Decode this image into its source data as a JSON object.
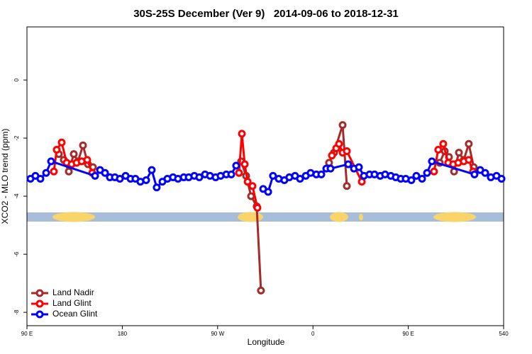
{
  "chart_data": {
    "type": "line",
    "title": "30S-25S December (Ver 9)   2014-09-06 to 2018-12-31",
    "xlabel": "Longitude",
    "ylabel": "XCO2 - MLO trend (ppm)",
    "xlim": [
      90,
      540
    ],
    "ylim": [
      -8.46,
      1.83
    ],
    "xticks": [
      {
        "value": 90,
        "label": "90 E"
      },
      180,
      {
        "value": 270,
        "label": "90 W"
      },
      {
        "value": 360,
        "label": "0"
      },
      {
        "value": 450,
        "label": "90 E"
      },
      540
    ],
    "yticks": [
      -8,
      -6,
      -4,
      -2,
      0
    ],
    "legend": "bottom-left",
    "series": [
      {
        "name": "Land Nadir",
        "color": "#a52a2a",
        "x": [
          120.1,
          124.8,
          129.5,
          134.2,
          138.2,
          142.9,
          147.6,
          152.3,
          null,
          292.2,
          296.9,
          301.6,
          306.9,
          310.9,
          null,
          375.2,
          379.9,
          388.0,
          392.0,
          null,
          479.7,
          484.4,
          488.4,
          493.2,
          497.8,
          502.4,
          507.1,
          511.8
        ],
        "values": [
          -2.55,
          -2.75,
          -3.15,
          -2.55,
          -2.8,
          -2.25,
          -2.9,
          -3.0,
          null,
          -2.8,
          -3.3,
          -4.0,
          -4.35,
          -7.25,
          null,
          -2.85,
          -2.5,
          -1.55,
          -3.65,
          null,
          -2.85,
          -2.45,
          -2.65,
          -3.15,
          -2.5,
          -2.75,
          -2.2,
          -3.0
        ]
      },
      {
        "name": "Land Glint",
        "color": "#ff0000",
        "x": [
          115.4,
          118.1,
          122.8,
          127.5,
          132.2,
          136.9,
          141.6,
          146.9,
          151.6,
          null,
          290.2,
          292.9,
          295.6,
          298.3,
          302.9,
          307.6,
          null,
          377.9,
          382.0,
          384.6,
          388.0,
          392.0,
          406.1,
          null,
          474.3,
          478.3,
          483.0,
          487.7,
          492.4,
          497.1,
          502.4,
          507.1,
          511.2
        ],
        "values": [
          -3.15,
          -2.4,
          -2.15,
          -2.85,
          -2.9,
          -2.85,
          -2.8,
          -2.75,
          -3.2,
          null,
          -3.2,
          -1.85,
          -2.9,
          -3.5,
          -3.65,
          -4.4,
          null,
          -2.6,
          -2.35,
          -2.2,
          -2.5,
          -2.45,
          -3.5,
          null,
          -3.15,
          -2.4,
          -2.2,
          -2.85,
          -2.9,
          -2.85,
          -2.8,
          -2.75,
          -3.15
        ]
      },
      {
        "name": "Ocean Glint",
        "color": "#0000ff",
        "x": [
          93.3,
          98.0,
          102.7,
          108.1,
          112.8,
          154.3,
          159.0,
          163.7,
          168.3,
          173.0,
          177.7,
          183.1,
          187.8,
          192.4,
          197.1,
          202.5,
          207.8,
          212.5,
          217.9,
          222.6,
          227.9,
          232.6,
          238.0,
          242.7,
          248.0,
          252.7,
          258.1,
          262.8,
          268.1,
          272.8,
          278.2,
          282.9,
          287.5,
          null,
          313.0,
          317.7,
          322.3,
          327.7,
          333.0,
          337.7,
          343.1,
          347.8,
          353.2,
          357.8,
          363.2,
          367.9,
          372.6,
          376.6,
          393.3,
          398.7,
          403.4,
          408.1,
          413.4,
          418.1,
          423.5,
          428.1,
          433.5,
          438.2,
          442.9,
          447.6,
          452.9,
          457.6,
          463.0,
          467.7,
          472.3,
          512.5,
          517.9,
          522.6,
          527.9,
          533.3,
          538.0
        ],
        "values": [
          -3.4,
          -3.3,
          -3.4,
          -3.2,
          -2.8,
          -3.3,
          -3.1,
          -3.2,
          -3.35,
          -3.35,
          -3.4,
          -3.3,
          -3.4,
          -3.4,
          -3.5,
          -3.45,
          -3.1,
          -3.7,
          -3.5,
          -3.4,
          -3.35,
          -3.4,
          -3.35,
          -3.35,
          -3.3,
          -3.35,
          -3.25,
          -3.3,
          -3.35,
          -3.3,
          -3.25,
          -3.25,
          -2.95,
          null,
          -3.75,
          -3.85,
          -3.3,
          -3.4,
          -3.45,
          -3.35,
          -3.3,
          -3.4,
          -3.3,
          -3.2,
          -3.25,
          -3.25,
          -3.05,
          -3.05,
          -2.9,
          -3.05,
          -3.0,
          -3.3,
          -3.25,
          -3.25,
          -3.3,
          -3.25,
          -3.3,
          -3.35,
          -3.4,
          -3.4,
          -3.45,
          -3.3,
          -3.4,
          -3.2,
          -2.8,
          -3.25,
          -3.1,
          -3.2,
          -3.35,
          -3.3,
          -3.4
        ]
      }
    ]
  }
}
